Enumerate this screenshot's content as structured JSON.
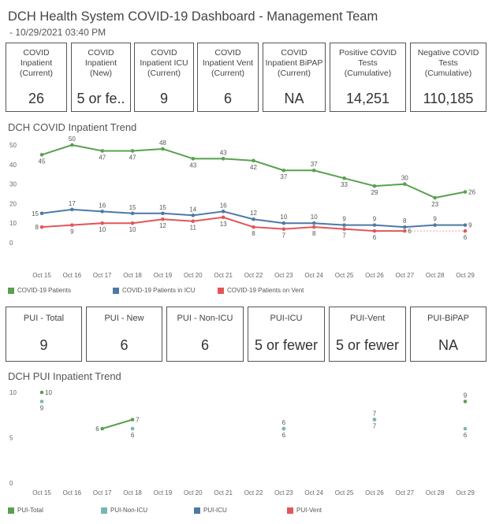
{
  "header": {
    "title": "DCH Health System COVID-19 Dashboard - Management Team",
    "timestamp": " - 10/29/2021 03:40 PM"
  },
  "covid_cards": [
    {
      "label": "COVID\nInpatient\n(Current)",
      "value": "26"
    },
    {
      "label": "COVID\nInpatient\n(New)",
      "value": "5 or fe.."
    },
    {
      "label": "COVID\nInpatient ICU\n(Current)",
      "value": "9"
    },
    {
      "label": "COVID\nInpatient Vent\n(Current)",
      "value": "6"
    },
    {
      "label": "COVID\nInpatient BiPAP\n(Current)",
      "value": "NA"
    },
    {
      "label": "Positive COVID\nTests\n(Cumulative)",
      "value": "14,251"
    },
    {
      "label": "Negative COVID\nTests\n(Cumulative)",
      "value": "110,185"
    }
  ],
  "pui_cards": [
    {
      "label": "PUI - Total",
      "value": "9"
    },
    {
      "label": "PUI - New",
      "value": "6"
    },
    {
      "label": "PUI - Non-ICU",
      "value": "6"
    },
    {
      "label": "PUI-ICU",
      "value": "5 or fewer"
    },
    {
      "label": "PUI-Vent",
      "value": "5 or fewer"
    },
    {
      "label": "PUI-BiPAP",
      "value": "NA"
    }
  ],
  "colors": {
    "green": "#59a14f",
    "blue": "#4e79a7",
    "red": "#e15759",
    "teal": "#76b7b2"
  },
  "chart_data": [
    {
      "type": "line",
      "title": "DCH COVID Inpatient Trend",
      "categories": [
        "Oct 15",
        "Oct 16",
        "Oct 17",
        "Oct 18",
        "Oct 19",
        "Oct 20",
        "Oct 21",
        "Oct 22",
        "Oct 23",
        "Oct 24",
        "Oct 25",
        "Oct 26",
        "Oct 27",
        "Oct 28",
        "Oct 29"
      ],
      "ylim": [
        0,
        50
      ],
      "yticks": [
        "0",
        "10",
        "20",
        "30",
        "40",
        "50"
      ],
      "grid": false,
      "legend": "bottom-left",
      "series": [
        {
          "name": "COVID-19 Patients",
          "color": "#59a14f",
          "values": [
            45,
            50,
            47,
            47,
            48,
            43,
            43,
            42,
            37,
            37,
            33,
            29,
            30,
            23,
            26
          ],
          "labels": [
            "45",
            "50",
            "47",
            "47",
            "48",
            "43",
            "43",
            "42",
            "37",
            "37",
            "33",
            "29",
            "30",
            "23",
            "26"
          ]
        },
        {
          "name": "COVID-19 Patients in ICU",
          "color": "#4e79a7",
          "values": [
            15,
            17,
            16,
            15,
            15,
            14,
            16,
            12,
            10,
            10,
            9,
            9,
            8,
            9,
            9
          ],
          "labels": [
            "15",
            "17",
            "16",
            "15",
            "15",
            "14",
            "16",
            "12",
            "10",
            "10",
            "9",
            "9",
            "8",
            "9",
            "9"
          ]
        },
        {
          "name": "COVID-19 Patients on Vent",
          "color": "#e15759",
          "values": [
            8,
            9,
            10,
            10,
            12,
            11,
            13,
            8,
            7,
            8,
            7,
            6,
            6,
            null,
            6
          ],
          "labels": [
            "8",
            "9",
            "10",
            "10",
            "12",
            "11",
            "13",
            "8",
            "7",
            "8",
            "7",
            "6",
            "6",
            "",
            "6"
          ]
        }
      ]
    },
    {
      "type": "line",
      "title": "DCH PUI Inpatient Trend",
      "categories": [
        "Oct 15",
        "Oct 16",
        "Oct 17",
        "Oct 18",
        "Oct 19",
        "Oct 20",
        "Oct 21",
        "Oct 22",
        "Oct 23",
        "Oct 24",
        "Oct 25",
        "Oct 26",
        "Oct 27",
        "Oct 28",
        "Oct 29"
      ],
      "ylim": [
        0,
        10
      ],
      "yticks": [
        "0",
        "5",
        "10"
      ],
      "grid": false,
      "legend": "bottom-left",
      "series": [
        {
          "name": "PUI-Total",
          "color": "#59a14f",
          "values": [
            10,
            null,
            6,
            7,
            null,
            null,
            null,
            null,
            6,
            null,
            null,
            7,
            null,
            null,
            9
          ],
          "labels": [
            "10",
            "",
            "6",
            "7",
            "",
            "",
            "",
            "",
            "6",
            "",
            "",
            "7",
            "",
            "",
            "9"
          ]
        },
        {
          "name": "PUI-Non-ICU",
          "color": "#76b7b2",
          "values": [
            9,
            null,
            null,
            6,
            null,
            null,
            null,
            null,
            6,
            null,
            null,
            7,
            null,
            null,
            6
          ],
          "labels": [
            "9",
            "",
            "",
            "6",
            "",
            "",
            "",
            "",
            "6",
            "",
            "",
            "7",
            "",
            "",
            "6"
          ]
        },
        {
          "name": "PUI-ICU",
          "color": "#4e79a7",
          "values": [
            null,
            null,
            null,
            null,
            null,
            null,
            null,
            null,
            null,
            null,
            null,
            null,
            null,
            null,
            null
          ],
          "labels": [
            "",
            "",
            "",
            "",
            "",
            "",
            "",
            "",
            "",
            "",
            "",
            "",
            "",
            "",
            ""
          ]
        },
        {
          "name": "PUI-Vent",
          "color": "#e15759",
          "values": [
            null,
            null,
            null,
            null,
            null,
            null,
            null,
            null,
            null,
            null,
            null,
            null,
            null,
            null,
            null
          ],
          "labels": [
            "",
            "",
            "",
            "",
            "",
            "",
            "",
            "",
            "",
            "",
            "",
            "",
            "",
            "",
            ""
          ]
        }
      ]
    }
  ]
}
